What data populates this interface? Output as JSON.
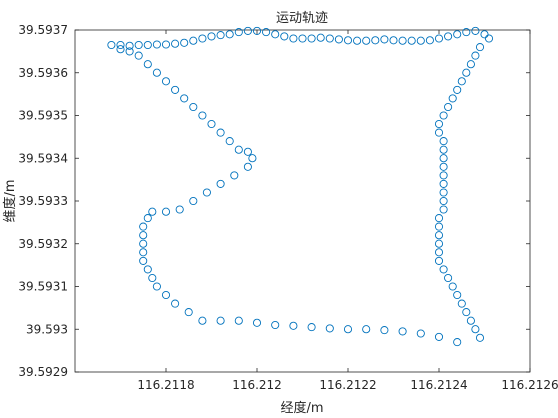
{
  "chart_data": {
    "type": "scatter",
    "title": "运动轨迹",
    "xlabel": "经度/m",
    "ylabel": "维度/m",
    "xlim": [
      116.2116,
      116.2126
    ],
    "ylim": [
      39.5929,
      39.5937
    ],
    "xticks": [
      116.2118,
      116.212,
      116.2122,
      116.2124,
      116.2126
    ],
    "xtick_labels": [
      "116.2118",
      "116.212",
      "116.2122",
      "116.2124",
      "116.2126"
    ],
    "yticks": [
      39.5929,
      39.593,
      39.5931,
      39.5932,
      39.5933,
      39.5934,
      39.5935,
      39.5936,
      39.5937
    ],
    "ytick_labels": [
      "39.5929",
      "39.593",
      "39.5931",
      "39.5932",
      "39.5933",
      "39.5934",
      "39.5935",
      "39.5936",
      "39.5937"
    ],
    "grid": false,
    "marker": "open-circle",
    "marker_color": "#0072BD",
    "series": [
      {
        "points": [
          [
            116.21168,
            39.593665
          ],
          [
            116.2117,
            39.593665
          ],
          [
            116.21172,
            39.593663
          ],
          [
            116.21174,
            39.593665
          ],
          [
            116.21176,
            39.593665
          ],
          [
            116.21178,
            39.593666
          ],
          [
            116.2118,
            39.593666
          ],
          [
            116.21182,
            39.593668
          ],
          [
            116.21184,
            39.59367
          ],
          [
            116.21186,
            39.593675
          ],
          [
            116.21188,
            39.59368
          ],
          [
            116.2119,
            39.593685
          ],
          [
            116.21192,
            39.593688
          ],
          [
            116.21194,
            39.59369
          ],
          [
            116.21196,
            39.593695
          ],
          [
            116.21198,
            39.593698
          ],
          [
            116.212,
            39.593698
          ],
          [
            116.21202,
            39.593695
          ],
          [
            116.21204,
            39.59369
          ],
          [
            116.21206,
            39.593685
          ],
          [
            116.21208,
            39.59368
          ],
          [
            116.2121,
            39.59368
          ],
          [
            116.21212,
            39.59368
          ],
          [
            116.21214,
            39.593682
          ],
          [
            116.21216,
            39.59368
          ],
          [
            116.21218,
            39.593678
          ],
          [
            116.2122,
            39.593676
          ],
          [
            116.21222,
            39.593675
          ],
          [
            116.21224,
            39.593675
          ],
          [
            116.21226,
            39.593676
          ],
          [
            116.21228,
            39.593678
          ],
          [
            116.2123,
            39.593676
          ],
          [
            116.21232,
            39.593675
          ],
          [
            116.21234,
            39.593675
          ],
          [
            116.21236,
            39.593675
          ],
          [
            116.21238,
            39.593676
          ],
          [
            116.2124,
            39.59368
          ],
          [
            116.21242,
            39.593685
          ],
          [
            116.21244,
            39.59369
          ],
          [
            116.21246,
            39.593695
          ],
          [
            116.21248,
            39.593698
          ],
          [
            116.2125,
            39.59369
          ],
          [
            116.21251,
            39.59368
          ],
          [
            116.21249,
            39.59366
          ],
          [
            116.21248,
            39.59364
          ],
          [
            116.21247,
            39.59362
          ],
          [
            116.21246,
            39.5936
          ],
          [
            116.21245,
            39.59358
          ],
          [
            116.21244,
            39.59356
          ],
          [
            116.21243,
            39.59354
          ],
          [
            116.21242,
            39.59352
          ],
          [
            116.21241,
            39.5935
          ],
          [
            116.2124,
            39.59348
          ],
          [
            116.2124,
            39.59346
          ],
          [
            116.21241,
            39.59344
          ],
          [
            116.21241,
            39.59342
          ],
          [
            116.21241,
            39.5934
          ],
          [
            116.21241,
            39.59338
          ],
          [
            116.21241,
            39.59336
          ],
          [
            116.21241,
            39.59334
          ],
          [
            116.21241,
            39.59332
          ],
          [
            116.21241,
            39.5933
          ],
          [
            116.21241,
            39.59328
          ],
          [
            116.2124,
            39.59326
          ],
          [
            116.2124,
            39.59324
          ],
          [
            116.2124,
            39.59322
          ],
          [
            116.2124,
            39.5932
          ],
          [
            116.2124,
            39.59318
          ],
          [
            116.2124,
            39.59316
          ],
          [
            116.21241,
            39.59314
          ],
          [
            116.21242,
            39.59312
          ],
          [
            116.21243,
            39.5931
          ],
          [
            116.21244,
            39.59308
          ],
          [
            116.21245,
            39.59306
          ],
          [
            116.21246,
            39.59304
          ],
          [
            116.21247,
            39.59302
          ],
          [
            116.21248,
            39.593
          ],
          [
            116.21249,
            39.59298
          ],
          [
            116.21244,
            39.59297
          ],
          [
            116.2124,
            39.592982
          ],
          [
            116.21236,
            39.59299
          ],
          [
            116.21232,
            39.592995
          ],
          [
            116.21228,
            39.592998
          ],
          [
            116.21224,
            39.593
          ],
          [
            116.2122,
            39.593
          ],
          [
            116.21216,
            39.593002
          ],
          [
            116.21212,
            39.593005
          ],
          [
            116.21208,
            39.593008
          ],
          [
            116.21204,
            39.59301
          ],
          [
            116.212,
            39.593015
          ],
          [
            116.21196,
            39.59302
          ],
          [
            116.21192,
            39.59302
          ],
          [
            116.21188,
            39.59302
          ],
          [
            116.21185,
            39.59304
          ],
          [
            116.21182,
            39.59306
          ],
          [
            116.2118,
            39.59308
          ],
          [
            116.21178,
            39.5931
          ],
          [
            116.21177,
            39.59312
          ],
          [
            116.21176,
            39.59314
          ],
          [
            116.21175,
            39.59316
          ],
          [
            116.21175,
            39.59318
          ],
          [
            116.21175,
            39.5932
          ],
          [
            116.21175,
            39.59322
          ],
          [
            116.21175,
            39.59324
          ],
          [
            116.21176,
            39.59326
          ],
          [
            116.21177,
            39.593275
          ],
          [
            116.2118,
            39.593275
          ],
          [
            116.21183,
            39.59328
          ],
          [
            116.21186,
            39.5933
          ],
          [
            116.21189,
            39.59332
          ],
          [
            116.21192,
            39.59334
          ],
          [
            116.21195,
            39.59336
          ],
          [
            116.21198,
            39.59338
          ],
          [
            116.21199,
            39.5934
          ],
          [
            116.21198,
            39.593415
          ],
          [
            116.21196,
            39.59342
          ],
          [
            116.21194,
            39.59344
          ],
          [
            116.21192,
            39.59346
          ],
          [
            116.2119,
            39.59348
          ],
          [
            116.21188,
            39.5935
          ],
          [
            116.21186,
            39.59352
          ],
          [
            116.21184,
            39.59354
          ],
          [
            116.21182,
            39.59356
          ],
          [
            116.2118,
            39.59358
          ],
          [
            116.21178,
            39.5936
          ],
          [
            116.21176,
            39.59362
          ],
          [
            116.21174,
            39.59364
          ],
          [
            116.21172,
            39.59365
          ],
          [
            116.2117,
            39.593655
          ]
        ]
      }
    ]
  }
}
